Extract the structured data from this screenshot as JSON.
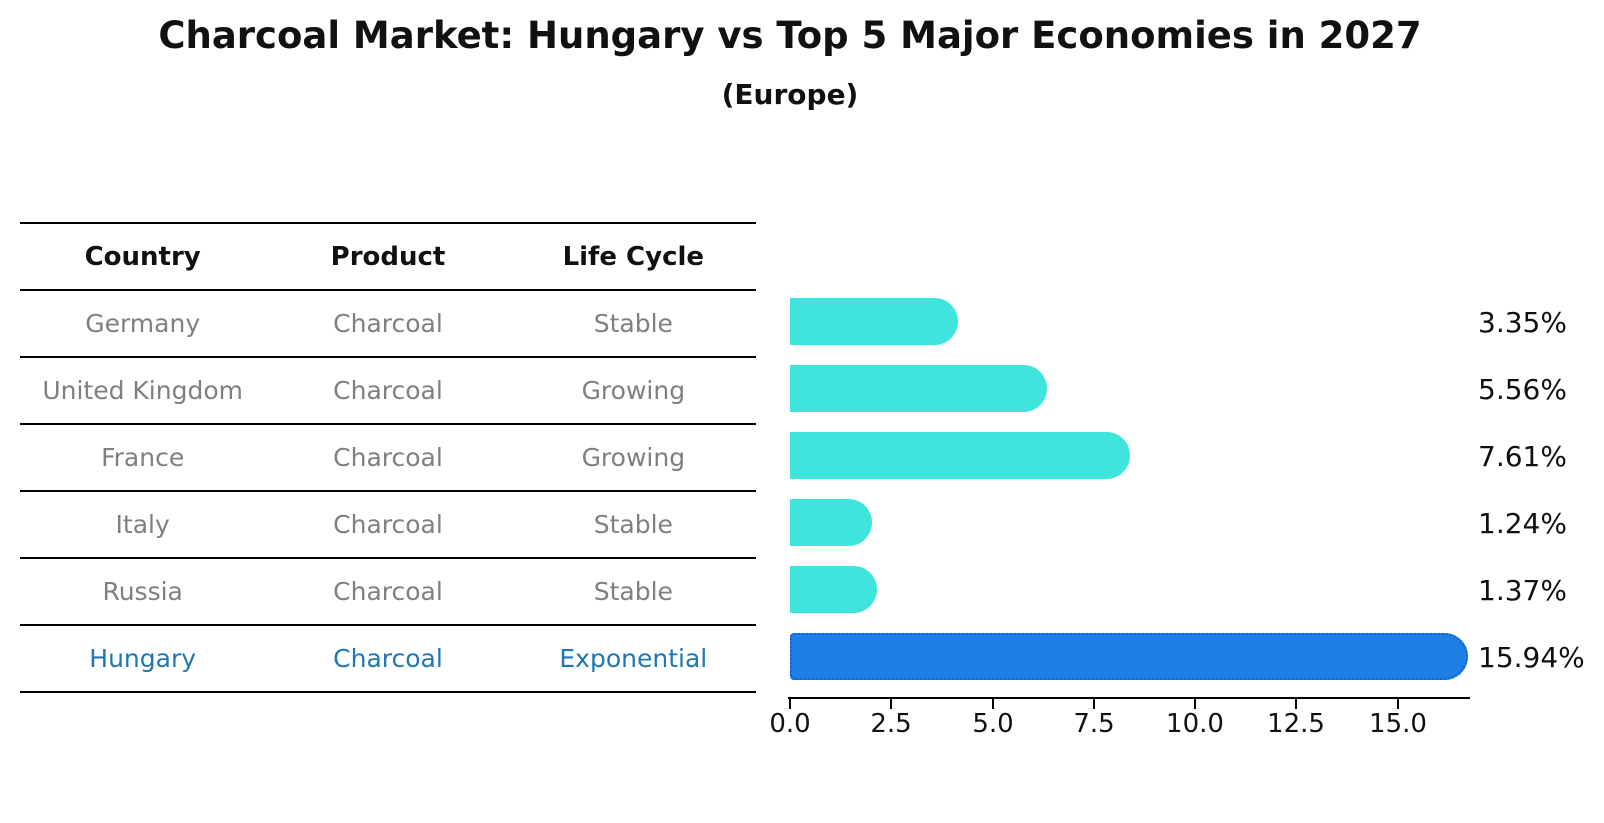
{
  "title": "Charcoal Market: Hungary vs Top 5 Major Economies in 2027",
  "subtitle": "(Europe)",
  "table": {
    "headers": [
      "Country",
      "Product",
      "Life Cycle"
    ],
    "rows": [
      {
        "country": "Germany",
        "product": "Charcoal",
        "life_cycle": "Stable",
        "highlighted": false
      },
      {
        "country": "United Kingdom",
        "product": "Charcoal",
        "life_cycle": "Growing",
        "highlighted": false
      },
      {
        "country": "France",
        "product": "Charcoal",
        "life_cycle": "Growing",
        "highlighted": false
      },
      {
        "country": "Italy",
        "product": "Charcoal",
        "life_cycle": "Stable",
        "highlighted": false
      },
      {
        "country": "Russia",
        "product": "Charcoal",
        "life_cycle": "Stable",
        "highlighted": false
      },
      {
        "country": "Hungary",
        "product": "Charcoal",
        "life_cycle": "Exponential",
        "highlighted": true
      }
    ]
  },
  "chart_data": {
    "type": "bar",
    "orientation": "horizontal",
    "title": "Charcoal Market: Hungary vs Top 5 Major Economies in 2027",
    "subtitle": "(Europe)",
    "categories": [
      "Germany",
      "United Kingdom",
      "France",
      "Italy",
      "Russia",
      "Hungary"
    ],
    "values": [
      3.35,
      5.56,
      7.61,
      1.24,
      1.37,
      15.94
    ],
    "value_labels": [
      "3.35%",
      "5.56%",
      "7.61%",
      "1.24%",
      "1.37%",
      "15.94%"
    ],
    "unit": "%",
    "xlabel": "",
    "ylabel": "",
    "xlim": [
      0,
      16.8
    ],
    "xticks": [
      0.0,
      2.5,
      5.0,
      7.5,
      10.0,
      12.5,
      15.0
    ],
    "xtick_labels": [
      "0.0",
      "2.5",
      "5.0",
      "7.5",
      "10.0",
      "12.5",
      "15.0"
    ],
    "grid": false,
    "legend": "none",
    "highlight_index": 5
  },
  "colors": {
    "bar": "#3FE5DC",
    "highlight_bar_fill": "#1E7FE5",
    "highlight_bar_border": "#0e63d0",
    "row_text": "#808080",
    "highlight_text": "#1f77b4",
    "axis": "#000000",
    "title_text": "#111111"
  }
}
